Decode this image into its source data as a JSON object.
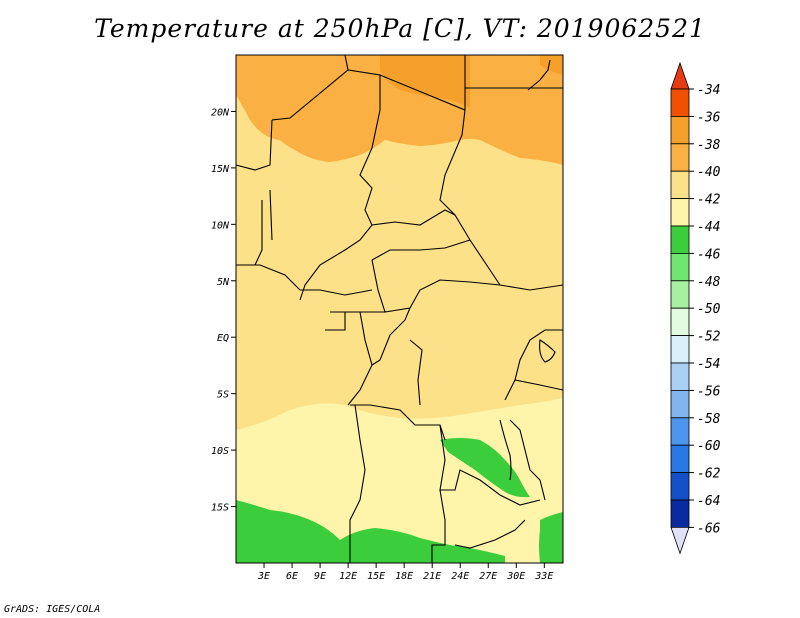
{
  "title": "Temperature at 250hPa [C], VT: 2019062521",
  "credit": "GrADS: IGES/COLA",
  "map": {
    "lon_range": [
      0,
      35
    ],
    "lat_range": [
      -20,
      25
    ],
    "lat_ticks": [
      {
        "value": 20,
        "label": "20N"
      },
      {
        "value": 15,
        "label": "15N"
      },
      {
        "value": 10,
        "label": "10N"
      },
      {
        "value": 5,
        "label": "5N"
      },
      {
        "value": 0,
        "label": "EQ"
      },
      {
        "value": -5,
        "label": "5S"
      },
      {
        "value": -10,
        "label": "10S"
      },
      {
        "value": -15,
        "label": "15S"
      }
    ],
    "lon_ticks": [
      {
        "value": 3,
        "label": "3E"
      },
      {
        "value": 6,
        "label": "6E"
      },
      {
        "value": 9,
        "label": "9E"
      },
      {
        "value": 12,
        "label": "12E"
      },
      {
        "value": 15,
        "label": "15E"
      },
      {
        "value": 18,
        "label": "18E"
      },
      {
        "value": 21,
        "label": "21E"
      },
      {
        "value": 24,
        "label": "24E"
      },
      {
        "value": 27,
        "label": "27E"
      },
      {
        "value": 30,
        "label": "30E"
      },
      {
        "value": 33,
        "label": "33E"
      }
    ]
  },
  "colorbar": {
    "levels": [
      {
        "label": "-34",
        "color": "#f05000"
      },
      {
        "label": "-36",
        "color": "#f07a0a"
      },
      {
        "label": "-38",
        "color": "#f5a02a"
      },
      {
        "label": "-40",
        "color": "#fab043"
      },
      {
        "label": "-42",
        "color": "#fde188"
      },
      {
        "label": "-44",
        "color": "#fff5aa"
      },
      {
        "label": "-46",
        "color": "#3ccd3c"
      },
      {
        "label": "-48",
        "color": "#6ee670"
      },
      {
        "label": "-50",
        "color": "#a6f0a0"
      },
      {
        "label": "-52",
        "color": "#e2fbe0"
      },
      {
        "label": "-54",
        "color": "#d8f0fa"
      },
      {
        "label": "-56",
        "color": "#aad0f5"
      },
      {
        "label": "-58",
        "color": "#82b4f0"
      },
      {
        "label": "-60",
        "color": "#4c96ee"
      },
      {
        "label": "-62",
        "color": "#2878e6"
      },
      {
        "label": "-64",
        "color": "#1450c8"
      },
      {
        "label": "-66",
        "color": "#0a2aa0"
      }
    ],
    "top_color": "#e63c14",
    "bottom_color": "#0a146e",
    "end_triangle_color": "#e0e0f8"
  }
}
